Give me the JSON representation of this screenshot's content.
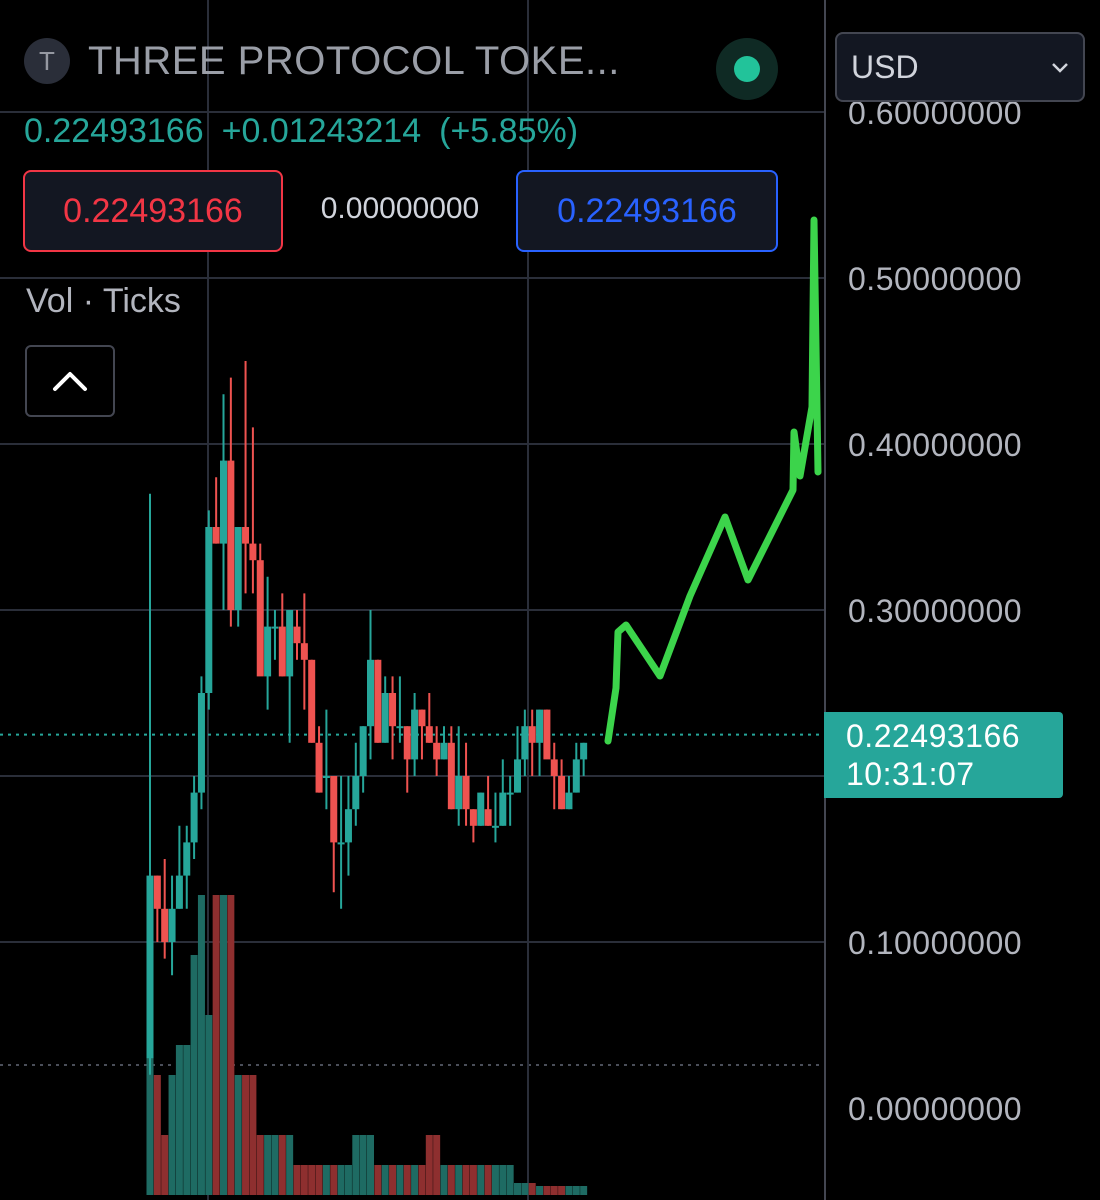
{
  "header": {
    "symbol_icon_letter": "T",
    "symbol_title": "THREE PROTOCOL TOKE...",
    "currency": "USD"
  },
  "quote": {
    "last": "0.22493166",
    "change": "+0.01243214",
    "change_pct": "(+5.85%)",
    "sell": "0.22493166",
    "spread": "0.00000000",
    "buy": "0.22493166"
  },
  "indicator": {
    "label": "Vol · Ticks"
  },
  "price_tag": {
    "price": "0.22493166",
    "countdown": "10:31:07"
  },
  "colors": {
    "up": "#26a69a",
    "down": "#ef5350",
    "up_volume": "#1e6b63",
    "down_volume": "#8e2f2f",
    "grid": "#2a2e39",
    "drawing": "#3cd44b"
  },
  "chart_data": {
    "type": "candlestick",
    "y_axis_ticks": [
      "0.50000000",
      "0.40000000",
      "0.30000000",
      "0.10000000",
      "0.00000000"
    ],
    "y_axis_partial_top": "0.60000000",
    "ylim": [
      -0.02,
      0.62
    ],
    "current_price": 0.22493166,
    "candles": [
      [
        0.03,
        0.02,
        0.37,
        0.14
      ],
      [
        0.14,
        0.1,
        0.14,
        0.12
      ],
      [
        0.12,
        0.09,
        0.15,
        0.1
      ],
      [
        0.1,
        0.08,
        0.14,
        0.12
      ],
      [
        0.12,
        0.12,
        0.17,
        0.14
      ],
      [
        0.14,
        0.12,
        0.17,
        0.16
      ],
      [
        0.16,
        0.15,
        0.2,
        0.19
      ],
      [
        0.19,
        0.18,
        0.26,
        0.25
      ],
      [
        0.25,
        0.24,
        0.36,
        0.35
      ],
      [
        0.35,
        0.34,
        0.38,
        0.34
      ],
      [
        0.34,
        0.3,
        0.43,
        0.39
      ],
      [
        0.39,
        0.29,
        0.44,
        0.3
      ],
      [
        0.3,
        0.29,
        0.35,
        0.35
      ],
      [
        0.35,
        0.31,
        0.45,
        0.34
      ],
      [
        0.34,
        0.31,
        0.41,
        0.33
      ],
      [
        0.33,
        0.3,
        0.34,
        0.26
      ],
      [
        0.26,
        0.24,
        0.32,
        0.29
      ],
      [
        0.29,
        0.27,
        0.3,
        0.29
      ],
      [
        0.29,
        0.26,
        0.31,
        0.26
      ],
      [
        0.26,
        0.22,
        0.3,
        0.3
      ],
      [
        0.29,
        0.27,
        0.3,
        0.28
      ],
      [
        0.28,
        0.24,
        0.31,
        0.27
      ],
      [
        0.27,
        0.22,
        0.27,
        0.22
      ],
      [
        0.22,
        0.19,
        0.23,
        0.19
      ],
      [
        0.2,
        0.18,
        0.24,
        0.2
      ],
      [
        0.2,
        0.13,
        0.2,
        0.16
      ],
      [
        0.16,
        0.12,
        0.2,
        0.16
      ],
      [
        0.16,
        0.14,
        0.2,
        0.18
      ],
      [
        0.18,
        0.17,
        0.22,
        0.2
      ],
      [
        0.2,
        0.19,
        0.23,
        0.23
      ],
      [
        0.23,
        0.21,
        0.3,
        0.27
      ],
      [
        0.27,
        0.22,
        0.27,
        0.22
      ],
      [
        0.22,
        0.22,
        0.26,
        0.25
      ],
      [
        0.25,
        0.21,
        0.26,
        0.23
      ],
      [
        0.23,
        0.22,
        0.26,
        0.23
      ],
      [
        0.23,
        0.19,
        0.23,
        0.21
      ],
      [
        0.21,
        0.2,
        0.25,
        0.24
      ],
      [
        0.24,
        0.21,
        0.24,
        0.23
      ],
      [
        0.23,
        0.22,
        0.25,
        0.22
      ],
      [
        0.22,
        0.2,
        0.23,
        0.21
      ],
      [
        0.21,
        0.21,
        0.23,
        0.22
      ],
      [
        0.22,
        0.18,
        0.23,
        0.18
      ],
      [
        0.18,
        0.17,
        0.23,
        0.2
      ],
      [
        0.2,
        0.17,
        0.22,
        0.18
      ],
      [
        0.18,
        0.16,
        0.18,
        0.17
      ],
      [
        0.17,
        0.17,
        0.19,
        0.19
      ],
      [
        0.18,
        0.17,
        0.2,
        0.17
      ],
      [
        0.17,
        0.16,
        0.19,
        0.17
      ],
      [
        0.17,
        0.17,
        0.21,
        0.19
      ],
      [
        0.19,
        0.17,
        0.2,
        0.19
      ],
      [
        0.19,
        0.19,
        0.23,
        0.21
      ],
      [
        0.21,
        0.2,
        0.24,
        0.23
      ],
      [
        0.23,
        0.2,
        0.24,
        0.22
      ],
      [
        0.22,
        0.2,
        0.24,
        0.24
      ],
      [
        0.24,
        0.22,
        0.24,
        0.21
      ],
      [
        0.21,
        0.18,
        0.22,
        0.2
      ],
      [
        0.2,
        0.18,
        0.21,
        0.18
      ],
      [
        0.18,
        0.18,
        0.2,
        0.19
      ],
      [
        0.19,
        0.19,
        0.22,
        0.21
      ],
      [
        0.21,
        0.2,
        0.22,
        0.22
      ]
    ],
    "volume_scale": [
      0,
      10
    ],
    "volumes": [
      10,
      4,
      2,
      4,
      5,
      5,
      8,
      10,
      6,
      10,
      10,
      10,
      4,
      4,
      4,
      2,
      2,
      2,
      2,
      2,
      1,
      1,
      1,
      1,
      1,
      1,
      1,
      1,
      2,
      2,
      2,
      1,
      1,
      1,
      1,
      1,
      1,
      1,
      2,
      2,
      1,
      1,
      1,
      1,
      1,
      1,
      1,
      1,
      1,
      1,
      0.4,
      0.4,
      0.4,
      0.3,
      0.3,
      0.3,
      0.3,
      0.3,
      0.3,
      0.3
    ],
    "drawn_projection": [
      [
        0.226,
        0.226
      ],
      [
        0.25,
        0.23
      ],
      [
        0.29,
        0.26
      ],
      [
        0.28,
        0.24
      ],
      [
        0.35,
        0.27
      ],
      [
        0.37,
        0.33
      ],
      [
        0.35,
        0.3
      ],
      [
        0.32,
        0.3
      ],
      [
        0.36,
        0.34
      ],
      [
        0.4,
        0.39
      ],
      [
        0.38,
        0.39
      ],
      [
        0.54,
        0.52
      ]
    ]
  }
}
